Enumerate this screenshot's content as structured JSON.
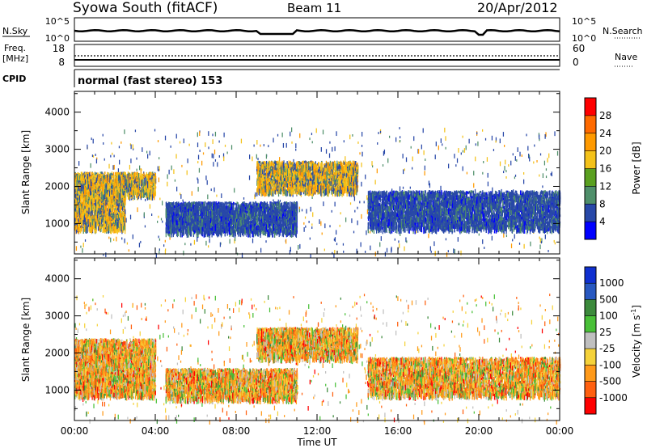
{
  "header": {
    "station": "Syowa South (fitACF)",
    "beam": "Beam 11",
    "date": "20/Apr/2012"
  },
  "strip_panels": {
    "nsky": {
      "left_label": "N.Sky",
      "right_label": "N.Search",
      "left_ticks": [
        "10^5",
        "10^0"
      ],
      "right_ticks": [
        "10^5",
        "10^0"
      ]
    },
    "freq": {
      "left_label_1": "Freq.",
      "left_label_2": "[MHz]",
      "right_label": "Nave",
      "left_ticks": [
        "18",
        "8"
      ],
      "right_ticks": [
        "60",
        "0"
      ]
    },
    "cpid": {
      "label": "CPID",
      "value": "normal (fast stereo) 153"
    }
  },
  "colorbars": {
    "power": {
      "label": "Power [dB]",
      "ticks": [
        "28",
        "24",
        "20",
        "16",
        "12",
        "8",
        "4"
      ],
      "colors": [
        "#ff0000",
        "#ff6a00",
        "#ff9a00",
        "#f4c21a",
        "#5aa020",
        "#4f8f6a",
        "#2848a8",
        "#0000ff"
      ]
    },
    "velocity": {
      "label": "Velocity [m s",
      "label_sup": "-1",
      "label_end": "]",
      "ticks": [
        "1000",
        "500",
        "100",
        "25",
        "-25",
        "-100",
        "-500",
        "-1000"
      ],
      "colors": [
        "#1030d0",
        "#2858c0",
        "#3c8a3c",
        "#49c038",
        "#bfbfbf",
        "#f5d23a",
        "#ff9a1a",
        "#ff6010",
        "#ff0000"
      ]
    }
  },
  "chart_data": [
    {
      "type": "heatmap",
      "title": "Power",
      "xlabel": "Time UT",
      "ylabel": "Slant Range [km]",
      "x_ticks": [
        "00:00",
        "04:00",
        "08:00",
        "12:00",
        "16:00",
        "20:00",
        "00:00"
      ],
      "xlim_hours": [
        0,
        24
      ],
      "y_ticks": [
        1000,
        2000,
        3000,
        4000
      ],
      "ylim_km": [
        180,
        4560
      ],
      "colorbar_range_db": [
        0,
        32
      ],
      "scatter_regions": [
        {
          "t_start": 0.0,
          "t_end": 2.5,
          "range_low": 900,
          "range_high": 2400,
          "level_db": 16
        },
        {
          "t_start": 2.0,
          "t_end": 4.0,
          "range_low": 1800,
          "range_high": 2400,
          "level_db": 16
        },
        {
          "t_start": 4.5,
          "t_end": 11.0,
          "range_low": 800,
          "range_high": 1600,
          "level_db": 8
        },
        {
          "t_start": 9.0,
          "t_end": 14.0,
          "range_low": 1900,
          "range_high": 2700,
          "level_db": 16
        },
        {
          "t_start": 14.5,
          "t_end": 24.0,
          "range_low": 900,
          "range_high": 1900,
          "level_db": 8
        }
      ]
    },
    {
      "type": "heatmap",
      "title": "Velocity",
      "xlabel": "Time UT",
      "ylabel": "Slant Range [km]",
      "x_ticks": [
        "00:00",
        "04:00",
        "08:00",
        "12:00",
        "16:00",
        "20:00",
        "00:00"
      ],
      "xlim_hours": [
        0,
        24
      ],
      "y_ticks": [
        1000,
        2000,
        3000,
        4000
      ],
      "ylim_km": [
        180,
        4560
      ],
      "colorbar_range_ms": [
        -1000,
        1000
      ],
      "scatter_regions": [
        {
          "t_start": 0.0,
          "t_end": 4.0,
          "range_low": 900,
          "range_high": 2400,
          "velocity_ms": -100
        },
        {
          "t_start": 4.5,
          "t_end": 11.0,
          "range_low": 800,
          "range_high": 1600,
          "velocity_ms": -25
        },
        {
          "t_start": 9.0,
          "t_end": 14.0,
          "range_low": 1900,
          "range_high": 2700,
          "velocity_ms": -100
        },
        {
          "t_start": 14.5,
          "t_end": 24.0,
          "range_low": 900,
          "range_high": 1900,
          "velocity_ms": -100
        }
      ]
    }
  ]
}
